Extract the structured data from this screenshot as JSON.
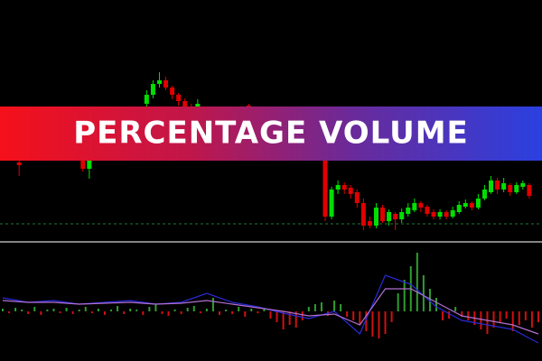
{
  "chart_data": [
    {
      "type": "candlestick",
      "title": "PERCENTAGE VOLUME",
      "x": [
        3,
        13,
        14,
        23,
        24,
        25,
        26,
        27,
        28,
        29,
        30,
        31,
        39,
        51,
        52,
        53,
        54,
        55,
        56,
        57,
        58,
        59,
        60,
        61,
        62,
        63,
        64,
        65,
        66,
        67,
        68,
        69,
        70,
        71,
        72,
        73,
        74,
        75,
        76,
        77,
        78,
        79,
        80,
        81,
        82,
        83
      ],
      "open": [
        85,
        90,
        78,
        150,
        160,
        172,
        176,
        168,
        160,
        153,
        147,
        140,
        148,
        110,
        25,
        55,
        60,
        57,
        52,
        40,
        20,
        15,
        35,
        20,
        28,
        22,
        28,
        32,
        40,
        36,
        30,
        25,
        30,
        25,
        30,
        36,
        40,
        35,
        45,
        52,
        65,
        55,
        60,
        52,
        58,
        60
      ],
      "high": [
        90,
        95,
        98,
        165,
        176,
        185,
        180,
        170,
        162,
        156,
        150,
        155,
        150,
        112,
        58,
        65,
        63,
        60,
        55,
        45,
        25,
        40,
        38,
        33,
        30,
        34,
        40,
        45,
        42,
        38,
        33,
        33,
        32,
        36,
        42,
        44,
        42,
        50,
        60,
        70,
        68,
        68,
        62,
        63,
        65,
        62
      ],
      "low": [
        70,
        75,
        67,
        145,
        156,
        168,
        165,
        155,
        148,
        140,
        135,
        135,
        135,
        20,
        22,
        50,
        50,
        45,
        35,
        10,
        12,
        12,
        18,
        15,
        10,
        18,
        25,
        30,
        30,
        25,
        22,
        22,
        22,
        23,
        28,
        34,
        32,
        33,
        43,
        50,
        50,
        52,
        48,
        50,
        55,
        45
      ],
      "close": [
        82,
        78,
        95,
        160,
        172,
        176,
        168,
        160,
        153,
        147,
        140,
        150,
        140,
        25,
        55,
        60,
        55,
        50,
        40,
        15,
        15,
        35,
        20,
        30,
        22,
        30,
        35,
        40,
        35,
        28,
        25,
        30,
        25,
        32,
        38,
        40,
        35,
        45,
        55,
        65,
        55,
        62,
        52,
        60,
        62,
        48
      ],
      "up_color": "#00e000",
      "down_color": "#e00000",
      "level": 17,
      "level_color": "#1f7a33",
      "xlim": [
        0,
        85
      ],
      "ylim": [
        0,
        265
      ]
    },
    {
      "type": "bar",
      "x": [
        0,
        1,
        2,
        3,
        4,
        5,
        6,
        7,
        8,
        9,
        10,
        11,
        12,
        13,
        14,
        15,
        16,
        17,
        18,
        19,
        20,
        21,
        22,
        23,
        24,
        25,
        26,
        27,
        28,
        29,
        30,
        31,
        32,
        33,
        34,
        35,
        36,
        37,
        38,
        39,
        40,
        41,
        42,
        43,
        44,
        45,
        46,
        47,
        48,
        49,
        50,
        51,
        52,
        53,
        54,
        55,
        56,
        57,
        58,
        59,
        60,
        61,
        62,
        63,
        64,
        65,
        66,
        67,
        68,
        69,
        70,
        71,
        72,
        73,
        74,
        75,
        76,
        77,
        78,
        79,
        80,
        81,
        82,
        83,
        84
      ],
      "values": [
        3,
        -2,
        4,
        2,
        -3,
        5,
        -4,
        2,
        3,
        -2,
        4,
        -3,
        2,
        5,
        -2,
        3,
        -4,
        2,
        6,
        -3,
        3,
        2,
        -4,
        5,
        8,
        -3,
        -5,
        2,
        -3,
        4,
        6,
        -2,
        3,
        15,
        -4,
        2,
        -3,
        5,
        -6,
        3,
        -2,
        4,
        -8,
        -12,
        -20,
        -15,
        -18,
        -10,
        5,
        8,
        10,
        -5,
        12,
        8,
        -6,
        -10,
        -15,
        -22,
        -28,
        -30,
        -25,
        -12,
        20,
        35,
        50,
        65,
        40,
        25,
        15,
        -10,
        -8,
        5,
        -6,
        -10,
        -15,
        -20,
        -25,
        -18,
        -12,
        -8,
        -22,
        -15,
        -10,
        -18,
        -12
      ],
      "up_color": "#2e9e2e",
      "down_color": "#d01010",
      "series": [
        {
          "color": "#2a2ad8",
          "x": [
            0,
            4,
            8,
            12,
            16,
            20,
            24,
            28,
            32,
            36,
            40,
            44,
            48,
            52,
            56,
            60,
            64,
            68,
            72,
            76,
            80,
            84
          ],
          "values": [
            15,
            10,
            12,
            8,
            10,
            12,
            8,
            10,
            20,
            10,
            5,
            -2,
            -8,
            0,
            -25,
            40,
            30,
            5,
            -10,
            -15,
            -20,
            -35
          ]
        },
        {
          "color": "#b070d0",
          "x": [
            0,
            4,
            8,
            12,
            16,
            20,
            24,
            28,
            32,
            36,
            40,
            44,
            48,
            52,
            56,
            60,
            64,
            68,
            72,
            76,
            80,
            84
          ],
          "values": [
            12,
            10,
            10,
            8,
            9,
            10,
            8,
            9,
            12,
            8,
            4,
            0,
            -5,
            -3,
            -15,
            25,
            25,
            10,
            -5,
            -10,
            -15,
            -25
          ]
        }
      ],
      "xlim": [
        0,
        85
      ],
      "ylim": [
        -55,
        75
      ]
    }
  ]
}
